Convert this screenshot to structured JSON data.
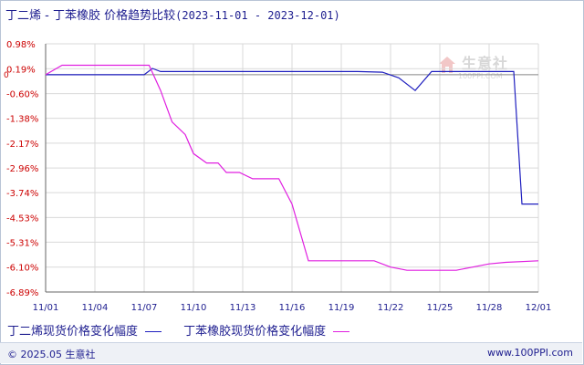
{
  "title": {
    "series_a": "丁二烯",
    "dash": " - ",
    "series_b": "丁苯橡胶",
    "subject": " 价格趋势比较",
    "date_range": "(2023-11-01 - 2023-12-01)"
  },
  "legend": {
    "a_label": "丁二烯现货价格变化幅度",
    "b_label": "丁苯橡胶现货价格变化幅度"
  },
  "watermark": {
    "name": "生意社",
    "url": "100PPI.COM"
  },
  "footer": {
    "left": "© 2025.05 生意社",
    "right": "www.100PPI.com"
  },
  "colors": {
    "series_a": "#1f1fbf",
    "series_b": "#e020e0",
    "axis_text": "#cc0000",
    "x_text": "#1d1d8f",
    "grid": "#d9d9d9",
    "zero_line": "#888888"
  },
  "chart_data": {
    "type": "line",
    "title": "丁二烯 - 丁苯橡胶 价格趋势比较(2023-11-01 - 2023-12-01)",
    "xlabel": "",
    "ylabel": "",
    "grid": true,
    "legend_position": "bottom",
    "x_ticks": [
      "11/01",
      "11/04",
      "11/07",
      "11/10",
      "11/13",
      "11/16",
      "11/19",
      "11/22",
      "11/25",
      "11/28",
      "12/01"
    ],
    "y_ticks": [
      "0.98%",
      "0.19%",
      "-0.60%",
      "-1.38%",
      "-2.17%",
      "-2.96%",
      "-3.74%",
      "-4.53%",
      "-5.31%",
      "-6.10%",
      "-6.89%"
    ],
    "y_tick_values": [
      0.98,
      0.19,
      -0.6,
      -1.38,
      -2.17,
      -2.96,
      -3.74,
      -4.53,
      -5.31,
      -6.1,
      -6.89
    ],
    "zero_label": "0",
    "ylim": [
      -6.89,
      0.98
    ],
    "x_range_days": [
      0,
      30
    ],
    "series": [
      {
        "name": "丁二烯现货价格变化幅度",
        "color": "#1f1fbf",
        "x": [
          0,
          6,
          6.5,
          7,
          18,
          19,
          20.5,
          21.5,
          22.5,
          23.5,
          28.5,
          29,
          30
        ],
        "y": [
          0,
          0,
          0.2,
          0.1,
          0.1,
          0.1,
          0.08,
          -0.1,
          -0.5,
          0.1,
          0.1,
          -4.1,
          -4.1
        ]
      },
      {
        "name": "丁苯橡胶现货价格变化幅度",
        "color": "#e020e0",
        "x": [
          0,
          1,
          6,
          6.3,
          7,
          7.7,
          8.5,
          9,
          9.8,
          10.5,
          11,
          11.8,
          12.6,
          13.4,
          14.2,
          15,
          16,
          20,
          21,
          22,
          23,
          25,
          26,
          27,
          28,
          30
        ],
        "y": [
          0,
          0.3,
          0.3,
          0.3,
          -0.5,
          -1.5,
          -1.9,
          -2.5,
          -2.8,
          -2.8,
          -3.1,
          -3.1,
          -3.3,
          -3.3,
          -3.3,
          -4.1,
          -5.9,
          -5.9,
          -6.1,
          -6.2,
          -6.2,
          -6.2,
          -6.1,
          -6.0,
          -5.95,
          -5.9
        ]
      }
    ]
  }
}
